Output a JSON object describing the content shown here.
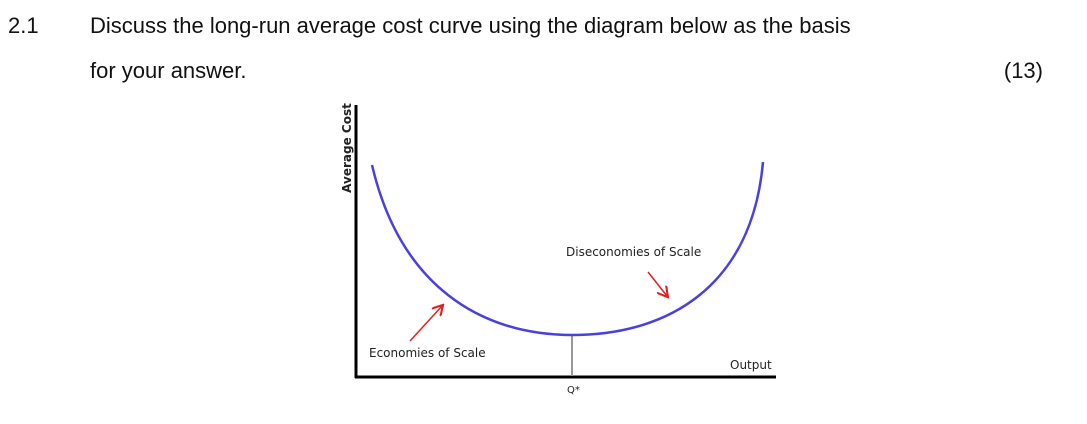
{
  "question": {
    "number": "2.1",
    "text_lines": [
      "Discuss the long-run average cost curve using the diagram below as the basis",
      "for your answer."
    ],
    "marks": "(13)"
  },
  "diagram": {
    "y_axis_label": "Average Cost",
    "x_axis_label": "Output",
    "q_label": "Q*",
    "labels": [
      "Diseconomies of Scale",
      "Economies of Scale"
    ]
  }
}
